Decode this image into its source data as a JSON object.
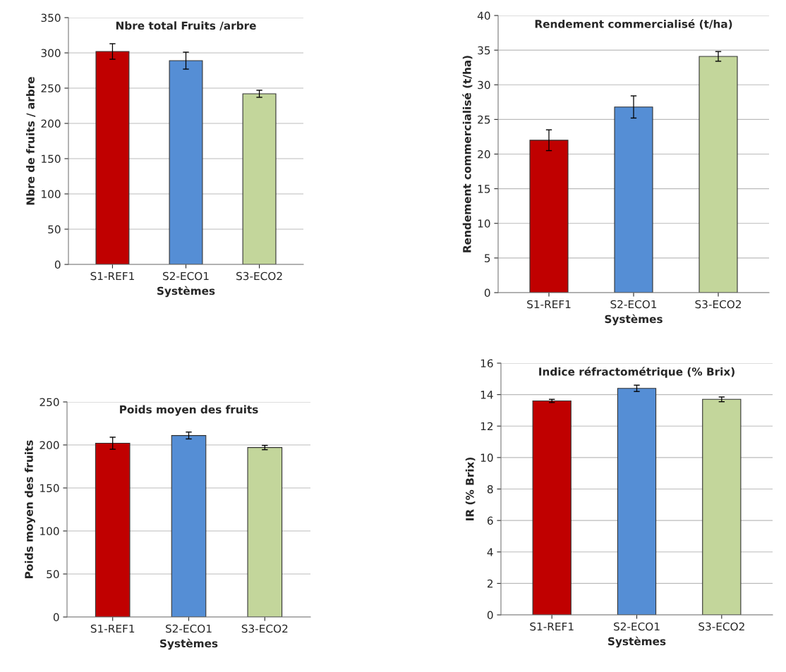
{
  "chart_data": [
    {
      "type": "bar",
      "title": "Nbre total Fruits /arbre",
      "xlabel": "Systèmes",
      "ylabel": "Nbre de fruits / arbre",
      "categories": [
        "S1-REF1",
        "S2-ECO1",
        "S3-ECO2"
      ],
      "values": [
        302,
        289,
        242
      ],
      "errors": [
        11,
        12,
        5
      ],
      "colors": [
        "#c00000",
        "#558ed5",
        "#c3d69b"
      ],
      "ylim": [
        0,
        350
      ],
      "yticks": [
        0,
        50,
        100,
        150,
        200,
        250,
        300,
        350
      ],
      "grid": "y"
    },
    {
      "type": "bar",
      "title": "Rendement commercialisé (t/ha)",
      "xlabel": "Systèmes",
      "ylabel": "Rendement commercialisé (t/ha)",
      "categories": [
        "S1-REF1",
        "S2-ECO1",
        "S3-ECO2"
      ],
      "values": [
        22,
        26.8,
        34.1
      ],
      "errors": [
        1.5,
        1.6,
        0.7
      ],
      "colors": [
        "#c00000",
        "#558ed5",
        "#c3d69b"
      ],
      "ylim": [
        0,
        40
      ],
      "yticks": [
        0,
        5,
        10,
        15,
        20,
        25,
        30,
        35,
        40
      ],
      "grid": "y"
    },
    {
      "type": "bar",
      "title": "Poids moyen des fruits",
      "xlabel": "Systèmes",
      "ylabel": "Poids moyen des fruits",
      "categories": [
        "S1-REF1",
        "S2-ECO1",
        "S3-ECO2"
      ],
      "values": [
        202,
        211,
        197
      ],
      "errors": [
        7,
        4,
        2.5
      ],
      "colors": [
        "#c00000",
        "#558ed5",
        "#c3d69b"
      ],
      "ylim": [
        0,
        250
      ],
      "yticks": [
        0,
        50,
        100,
        150,
        200,
        250
      ],
      "grid": "y"
    },
    {
      "type": "bar",
      "title": "Indice réfractométrique (% Brix)",
      "xlabel": "Systèmes",
      "ylabel": "IR (% Brix)",
      "categories": [
        "S1-REF1",
        "S2-ECO1",
        "S3-ECO2"
      ],
      "values": [
        13.6,
        14.4,
        13.7
      ],
      "errors": [
        0.1,
        0.2,
        0.15
      ],
      "colors": [
        "#c00000",
        "#558ed5",
        "#c3d69b"
      ],
      "ylim": [
        0,
        16
      ],
      "yticks": [
        0,
        2,
        4,
        6,
        8,
        10,
        12,
        14,
        16
      ],
      "grid": "y"
    }
  ]
}
